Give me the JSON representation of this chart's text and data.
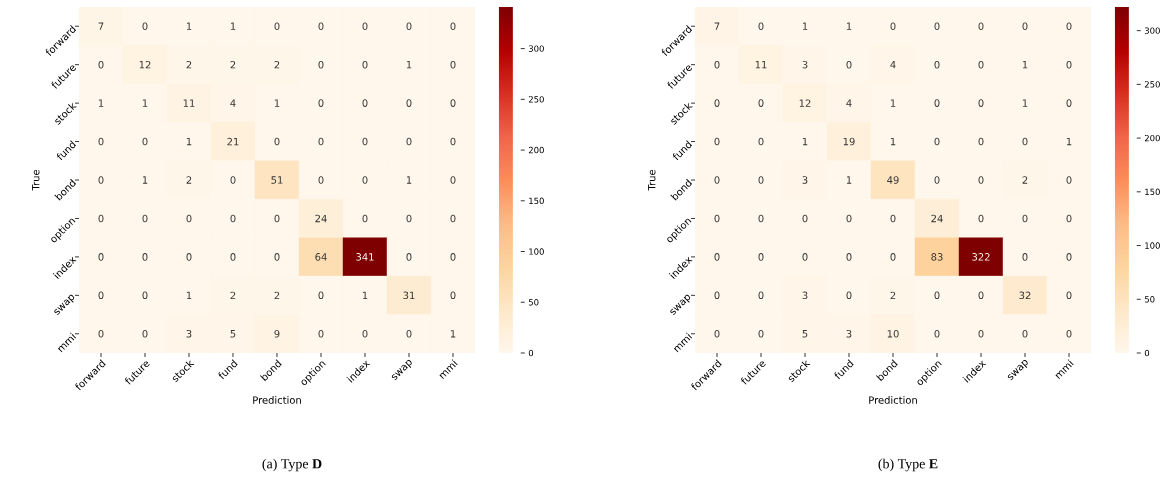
{
  "chart_data": [
    {
      "type": "heatmap",
      "title": "(a) Type **D**",
      "xlabel": "Prediction",
      "ylabel": "True",
      "categories": [
        "forward",
        "future",
        "stock",
        "fund",
        "bond",
        "option",
        "index",
        "swap",
        "mmi"
      ],
      "y_categories": [
        "forward",
        "future",
        "stock",
        "fund",
        "bond",
        "option",
        "index",
        "swap",
        "mmi"
      ],
      "cells": [
        [
          7,
          0,
          1,
          1,
          0,
          0,
          0,
          0,
          0
        ],
        [
          0,
          12,
          2,
          2,
          2,
          0,
          0,
          1,
          0
        ],
        [
          1,
          1,
          11,
          4,
          1,
          0,
          0,
          0,
          0
        ],
        [
          0,
          0,
          1,
          21,
          0,
          0,
          0,
          0,
          0
        ],
        [
          0,
          1,
          2,
          0,
          51,
          0,
          0,
          1,
          0
        ],
        [
          0,
          0,
          0,
          0,
          0,
          24,
          0,
          0,
          0
        ],
        [
          0,
          0,
          0,
          0,
          0,
          64,
          341,
          0,
          0
        ],
        [
          0,
          0,
          1,
          2,
          2,
          0,
          1,
          31,
          0
        ],
        [
          0,
          0,
          3,
          5,
          9,
          0,
          0,
          0,
          1
        ]
      ],
      "clim": [
        0,
        341
      ],
      "cticks": [
        0,
        50,
        100,
        150,
        200,
        250,
        300
      ],
      "data_labels": true
    },
    {
      "type": "heatmap",
      "title": "(b) Type **E**",
      "xlabel": "Prediction",
      "ylabel": "True",
      "categories": [
        "forward",
        "future",
        "stock",
        "fund",
        "bond",
        "option",
        "index",
        "swap",
        "mmi"
      ],
      "y_categories": [
        "forward",
        "future",
        "stock",
        "fund",
        "bond",
        "option",
        "index",
        "swap",
        "mmi"
      ],
      "cells": [
        [
          7,
          0,
          1,
          1,
          0,
          0,
          0,
          0,
          0
        ],
        [
          0,
          11,
          3,
          0,
          4,
          0,
          0,
          1,
          0
        ],
        [
          0,
          0,
          12,
          4,
          1,
          0,
          0,
          1,
          0
        ],
        [
          0,
          0,
          1,
          19,
          1,
          0,
          0,
          0,
          1
        ],
        [
          0,
          0,
          3,
          1,
          49,
          0,
          0,
          2,
          0
        ],
        [
          0,
          0,
          0,
          0,
          0,
          24,
          0,
          0,
          0
        ],
        [
          0,
          0,
          0,
          0,
          0,
          83,
          322,
          0,
          0
        ],
        [
          0,
          0,
          3,
          0,
          2,
          0,
          0,
          32,
          0
        ],
        [
          0,
          0,
          5,
          3,
          10,
          0,
          0,
          0,
          0
        ]
      ],
      "clim": [
        0,
        322
      ],
      "cticks": [
        0,
        50,
        100,
        150,
        200,
        250,
        300
      ],
      "data_labels": true
    }
  ]
}
